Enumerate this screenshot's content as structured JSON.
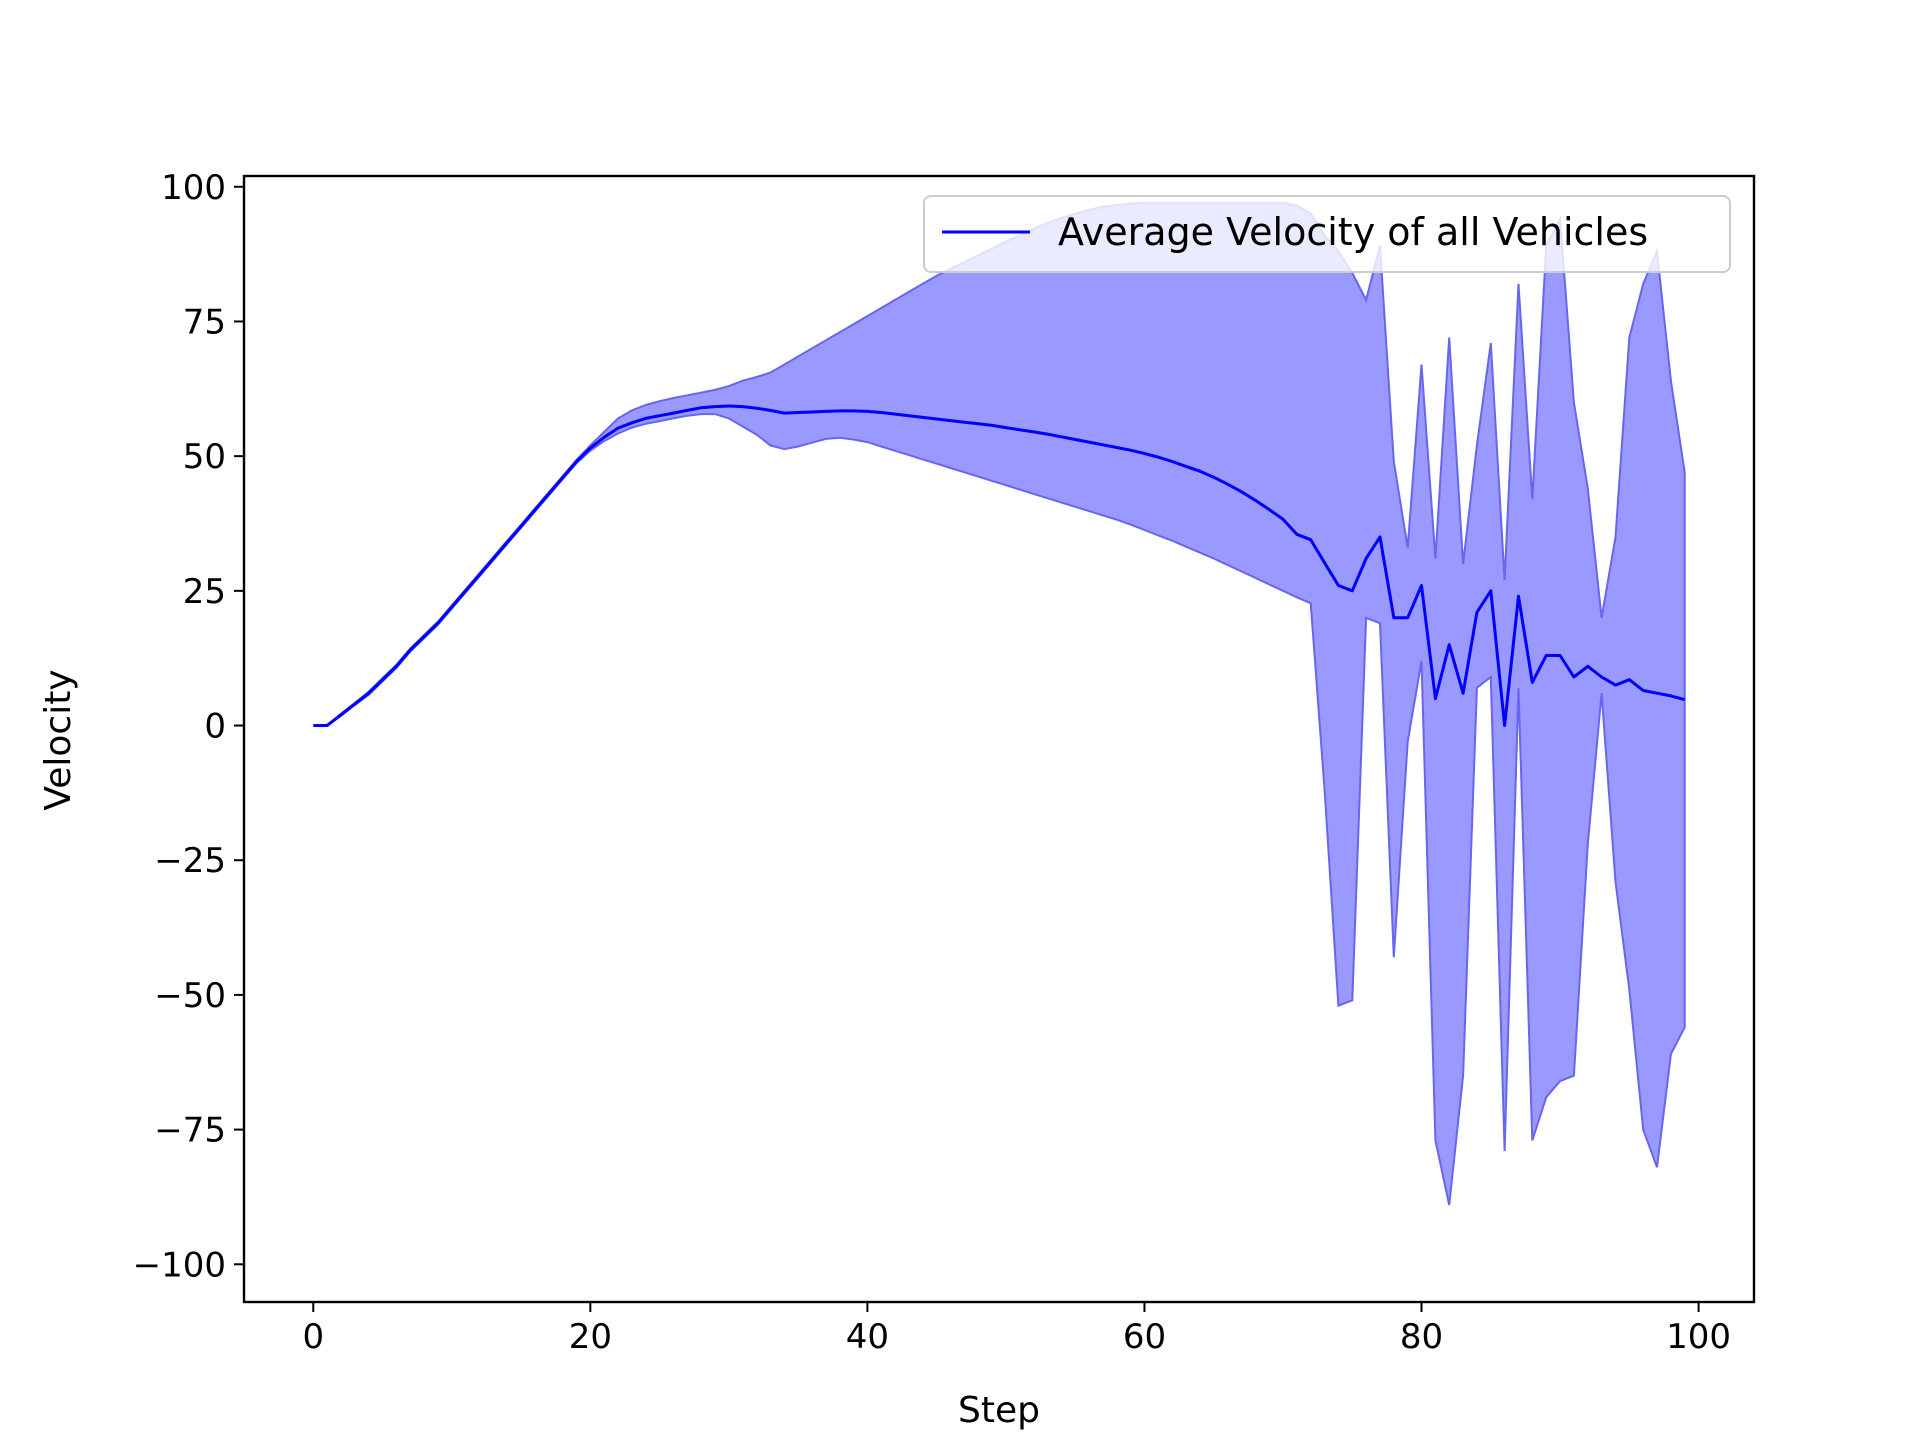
{
  "chart_data": {
    "type": "line",
    "title": "",
    "xlabel": "Step",
    "ylabel": "Velocity",
    "xlim": [
      -5,
      104
    ],
    "ylim": [
      -107,
      102
    ],
    "xticks": [
      0,
      20,
      40,
      60,
      80,
      100
    ],
    "yticks": [
      -100,
      -75,
      -50,
      -25,
      0,
      25,
      50,
      75,
      100
    ],
    "xtick_labels": [
      "0",
      "20",
      "40",
      "60",
      "80",
      "100"
    ],
    "ytick_labels": [
      "−100",
      "−75",
      "−50",
      "−25",
      "0",
      "25",
      "50",
      "75",
      "100"
    ],
    "grid": false,
    "legend": {
      "placement": "upper right",
      "entries": [
        "Average Velocity of all Vehicles"
      ]
    },
    "colors": {
      "line": "#0000ff",
      "band_fill": "#9999ff",
      "band_edge": "#6666ee"
    },
    "series": [
      {
        "name": "Average Velocity of all Vehicles",
        "x": [
          0,
          1,
          2,
          3,
          4,
          5,
          6,
          7,
          8,
          9,
          10,
          11,
          12,
          13,
          14,
          15,
          16,
          17,
          18,
          19,
          20,
          21,
          22,
          23,
          24,
          25,
          26,
          27,
          28,
          29,
          30,
          31,
          32,
          33,
          34,
          35,
          36,
          37,
          38,
          39,
          40,
          41,
          42,
          43,
          44,
          45,
          46,
          47,
          48,
          49,
          50,
          51,
          52,
          53,
          54,
          55,
          56,
          57,
          58,
          59,
          60,
          61,
          62,
          63,
          64,
          65,
          66,
          67,
          68,
          69,
          70,
          71,
          72,
          73,
          74,
          75,
          76,
          77,
          78,
          79,
          80,
          81,
          82,
          83,
          84,
          85,
          86,
          87,
          88,
          89,
          90,
          91,
          92,
          93,
          94,
          95,
          96,
          97,
          98,
          99
        ],
        "mean": [
          0,
          0,
          2,
          4,
          6,
          8.5,
          11,
          14,
          16.5,
          19,
          22,
          25,
          28,
          31,
          34,
          37,
          40,
          43,
          46,
          49,
          51.5,
          53.5,
          55.2,
          56.2,
          57,
          57.5,
          58,
          58.5,
          59,
          59.2,
          59.3,
          59.2,
          58.9,
          58.5,
          58.0,
          58.1,
          58.2,
          58.3,
          58.4,
          58.4,
          58.3,
          58.1,
          57.8,
          57.5,
          57.2,
          56.9,
          56.6,
          56.3,
          56.0,
          55.7,
          55.3,
          54.9,
          54.5,
          54.1,
          53.6,
          53.1,
          52.6,
          52.1,
          51.6,
          51.1,
          50.5,
          49.8,
          49.0,
          48.1,
          47.2,
          46.1,
          44.8,
          43.4,
          41.8,
          40.1,
          38.3,
          35.5,
          34.5,
          30.2,
          26,
          25,
          31,
          35,
          20,
          20,
          26,
          5,
          15,
          6,
          21,
          25,
          0,
          24,
          8,
          13,
          13,
          9,
          11,
          9,
          7.5,
          8.5,
          6.5,
          6,
          5.5,
          4.8
        ],
        "upper": [
          0,
          0,
          2.2,
          4.2,
          6.3,
          8.8,
          11.3,
          14.3,
          16.8,
          19.3,
          22.3,
          25.3,
          28.3,
          31.3,
          34.3,
          37.3,
          40.3,
          43.3,
          46.3,
          49.3,
          52,
          54.5,
          57,
          58.5,
          59.5,
          60.2,
          60.8,
          61.3,
          61.8,
          62.3,
          63,
          64,
          64.7,
          65.5,
          67,
          68.5,
          70,
          71.5,
          73,
          74.5,
          76,
          77.5,
          79,
          80.5,
          82,
          83.5,
          84.8,
          86,
          87.3,
          88.5,
          89.8,
          91,
          92.2,
          93.3,
          94.2,
          95,
          95.7,
          96.3,
          96.6,
          96.9,
          97.0,
          97.0,
          97.0,
          97.0,
          97.0,
          97.0,
          97.0,
          97.0,
          97.0,
          97.0,
          97.0,
          96.5,
          95.0,
          91.0,
          88.0,
          84.0,
          79.0,
          89.0,
          49.0,
          33.0,
          67.0,
          31.0,
          72.0,
          30.0,
          52.0,
          71.0,
          27.0,
          82.0,
          42.0,
          89.0,
          94.0,
          60.0,
          44.0,
          20.0,
          35.0,
          72.0,
          82.0,
          88.0,
          64.0,
          47.0
        ],
        "lower": [
          0,
          0,
          1.8,
          3.8,
          5.7,
          8.2,
          10.7,
          13.7,
          16.2,
          18.7,
          21.7,
          24.7,
          27.7,
          30.7,
          33.7,
          36.7,
          39.7,
          42.7,
          45.7,
          48.7,
          51,
          52.8,
          54.2,
          55.3,
          56,
          56.5,
          57,
          57.5,
          57.8,
          57.8,
          57,
          55.5,
          54,
          52,
          51.3,
          51.8,
          52.5,
          53.2,
          53.4,
          53.1,
          52.6,
          51.8,
          51.0,
          50.2,
          49.4,
          48.6,
          47.8,
          47.0,
          46.2,
          45.4,
          44.6,
          43.8,
          43.0,
          42.2,
          41.4,
          40.6,
          39.8,
          39.0,
          38.2,
          37.3,
          36.3,
          35.3,
          34.3,
          33.2,
          32.1,
          31.0,
          29.8,
          28.6,
          27.4,
          26.2,
          25.0,
          23.8,
          22.7,
          -12.0,
          -52.0,
          -51.0,
          20.0,
          19.0,
          -43.0,
          -3.0,
          12.0,
          -77.0,
          -89.0,
          -65.0,
          7.0,
          9.0,
          -79.0,
          7.0,
          -77.0,
          -69.0,
          -66.0,
          -65.0,
          -22.0,
          6.0,
          -29.0,
          -49.0,
          -75.0,
          -82.0,
          -61.0,
          -56.0
        ]
      }
    ]
  }
}
